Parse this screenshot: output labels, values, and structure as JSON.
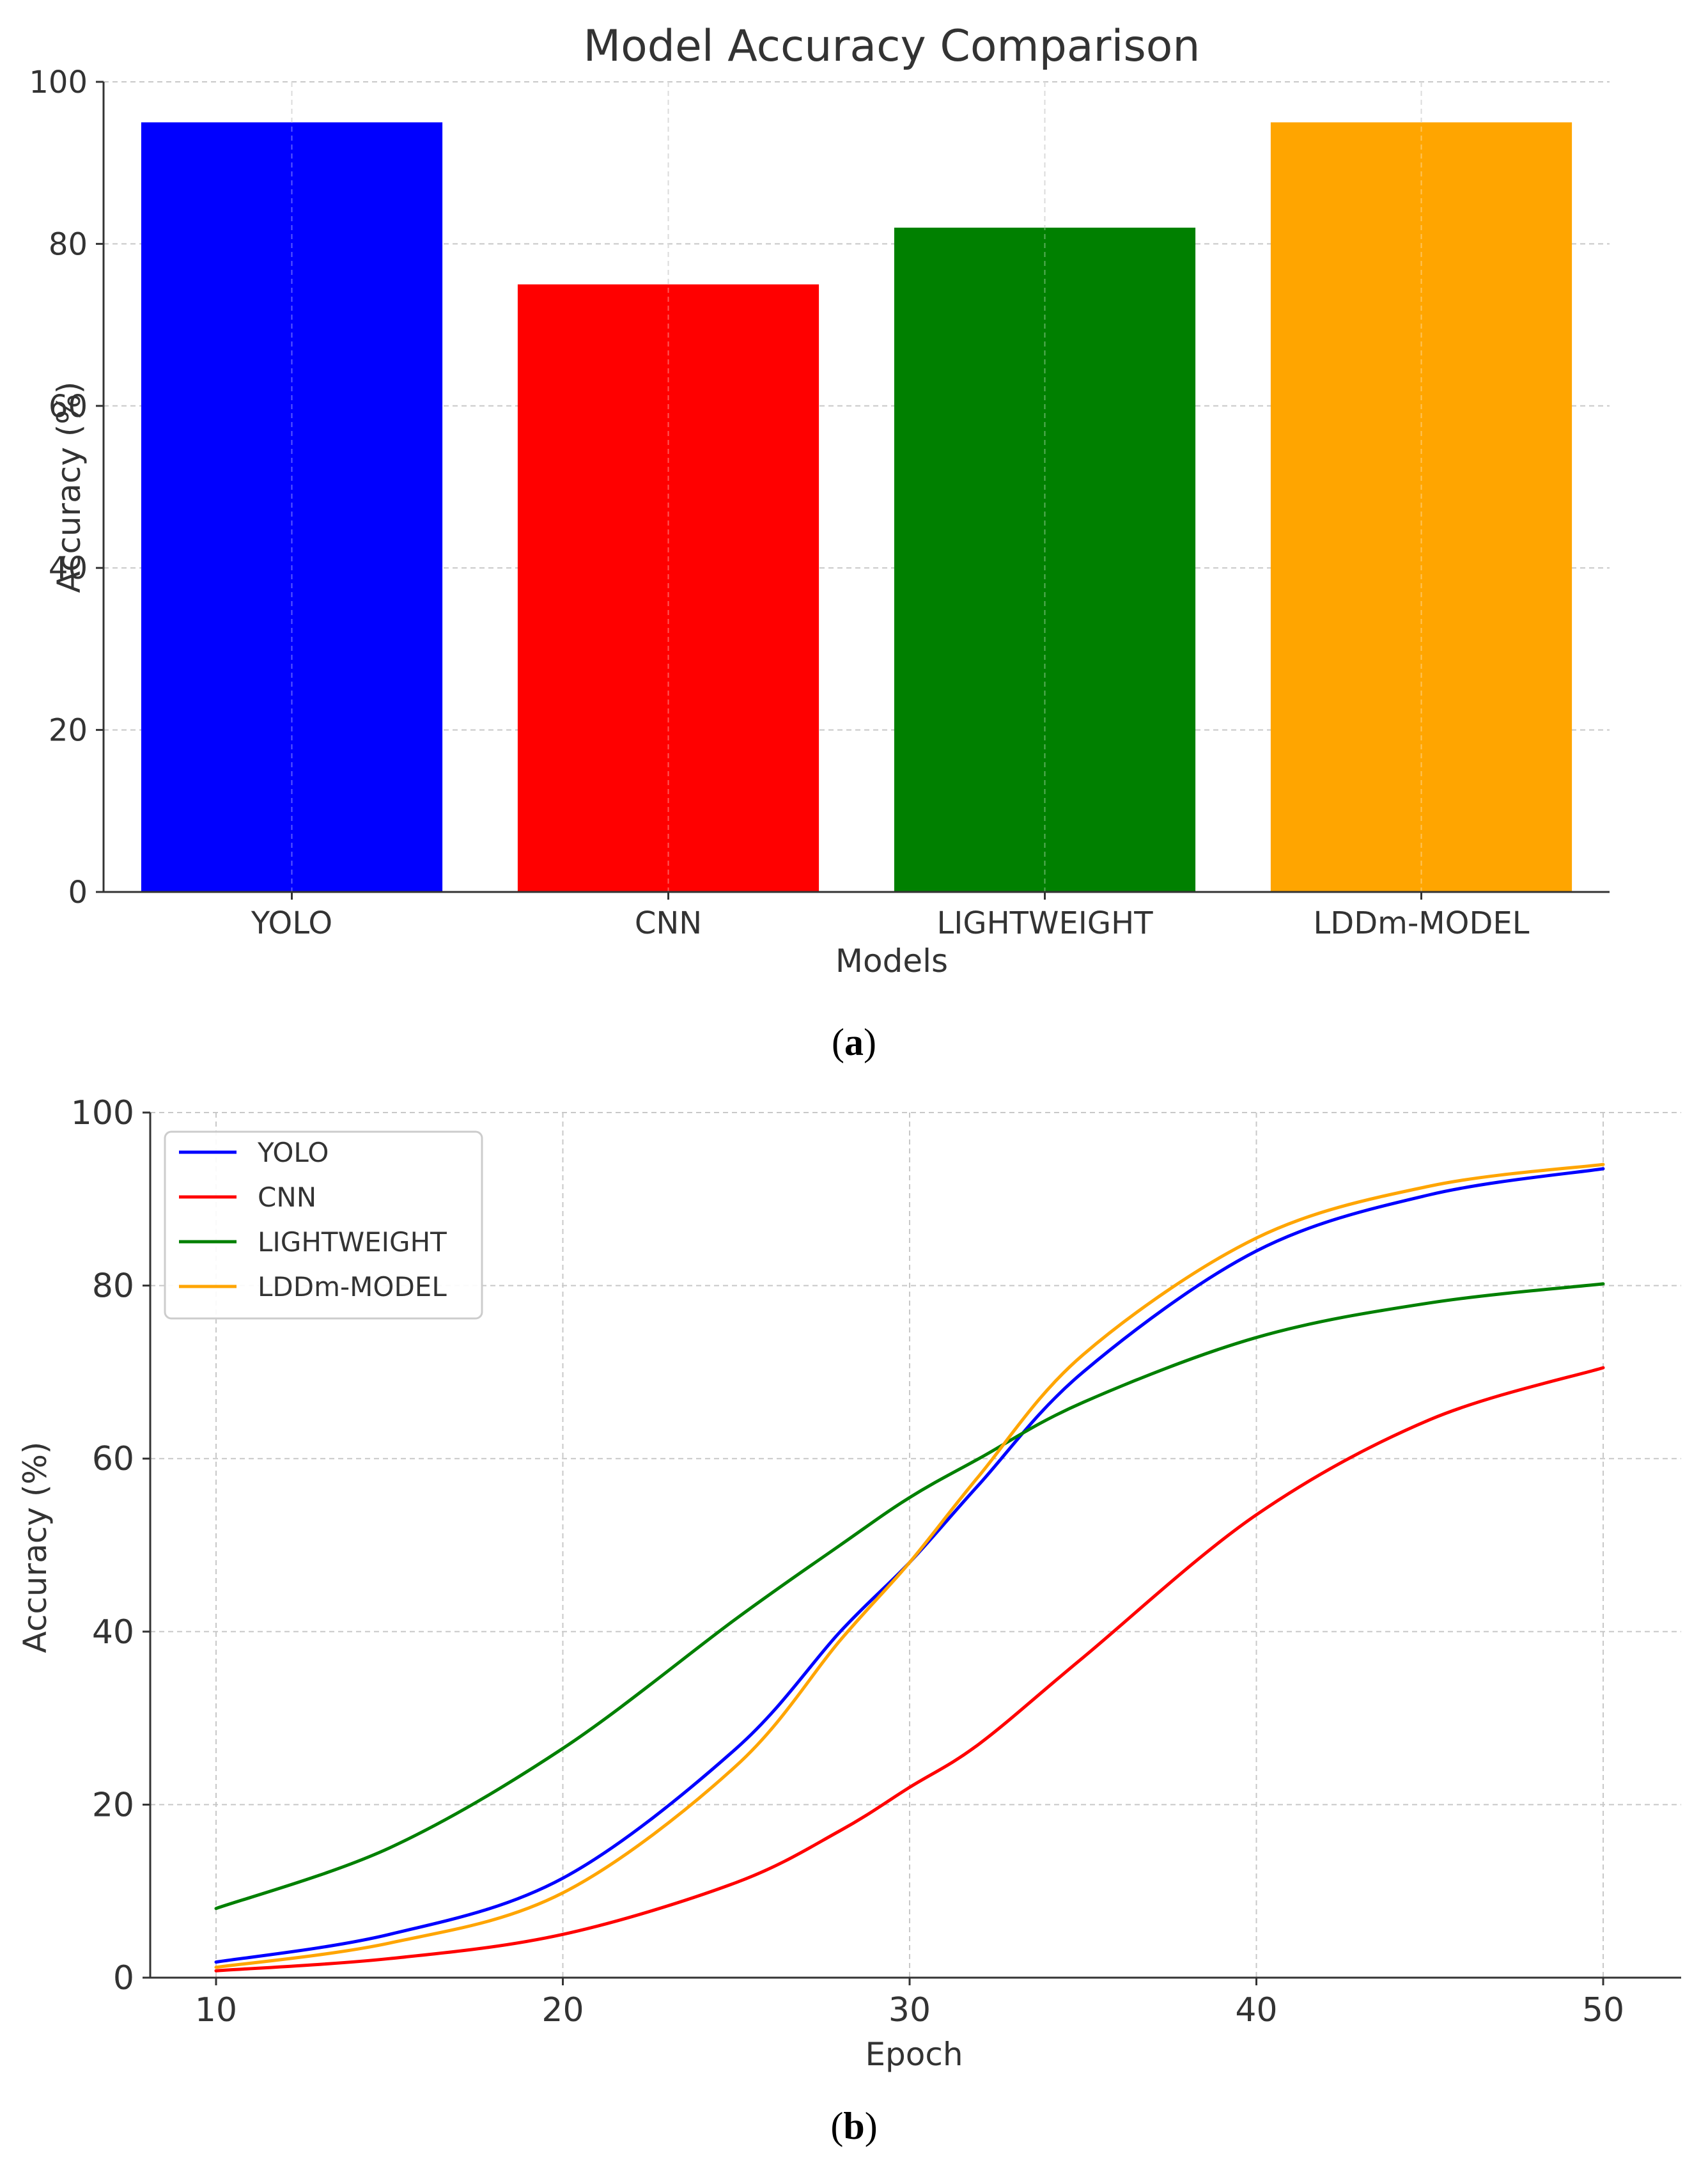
{
  "chart_data": [
    {
      "type": "bar",
      "title": "Model Accuracy Comparison",
      "xlabel": "Models",
      "ylabel": "Accuracy (%)",
      "categories": [
        "YOLO",
        "CNN",
        "LIGHTWEIGHT",
        "LDDm-MODEL"
      ],
      "values": [
        95,
        75,
        82,
        95
      ],
      "colors": [
        "#0000ff",
        "#ff0000",
        "#008000",
        "#ffa500"
      ],
      "ylim": [
        0,
        100
      ],
      "yticks": [
        0,
        20,
        40,
        60,
        80,
        100
      ],
      "grid": true,
      "caption_pre": "(",
      "caption_letter": "a",
      "caption_post": ")"
    },
    {
      "type": "line",
      "title": "",
      "xlabel": "Epoch",
      "ylabel": "Accuracy (%)",
      "xlim": [
        10,
        50
      ],
      "ylim": [
        0,
        100
      ],
      "xticks": [
        10,
        20,
        30,
        40,
        50
      ],
      "yticks": [
        0,
        20,
        40,
        60,
        80,
        100
      ],
      "grid": true,
      "legend_position": "top-left",
      "x": [
        10,
        15,
        20,
        25,
        28,
        30,
        32,
        35,
        40,
        45,
        50
      ],
      "series": [
        {
          "name": "YOLO",
          "color": "#0000ff",
          "values": [
            1.8,
            5.0,
            11.5,
            26.5,
            40,
            48,
            57,
            70,
            84,
            90.5,
            93.5
          ]
        },
        {
          "name": "CNN",
          "color": "#ff0000",
          "values": [
            0.8,
            2.2,
            5.0,
            11.0,
            17,
            22,
            27,
            37,
            53.5,
            64.5,
            70.5
          ]
        },
        {
          "name": "LIGHTWEIGHT",
          "color": "#008000",
          "values": [
            8.0,
            15.0,
            26.5,
            41.5,
            50,
            55.5,
            60,
            66.5,
            74,
            78,
            80.2
          ]
        },
        {
          "name": "LDDm-MODEL",
          "color": "#ffa500",
          "values": [
            1.2,
            4.0,
            9.8,
            24.5,
            39,
            48,
            58,
            72,
            85.5,
            91.5,
            94
          ]
        }
      ],
      "caption_pre": "(",
      "caption_letter": "b",
      "caption_post": ")"
    }
  ]
}
